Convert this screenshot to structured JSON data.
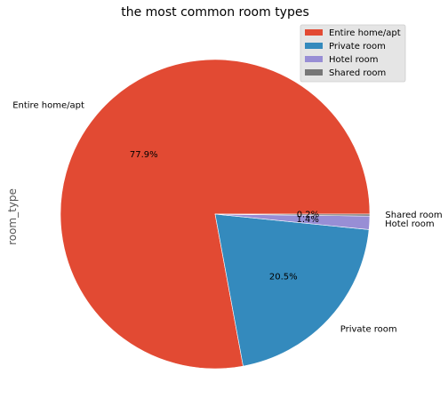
{
  "chart_data": {
    "type": "pie",
    "title": "the most common room types",
    "ylabel": "room_type",
    "categories": [
      "Entire home/apt",
      "Private room",
      "Hotel room",
      "Shared room"
    ],
    "values": [
      77.9,
      20.5,
      1.4,
      0.2
    ],
    "pct_labels": [
      "77.9%",
      "20.5%",
      "1.4%",
      "0.2%"
    ],
    "colors": [
      "#E24A33",
      "#348ABD",
      "#988ED5",
      "#777777"
    ],
    "legend": {
      "placement": "top-right",
      "entries": [
        "Entire home/apt",
        "Private room",
        "Hotel room",
        "Shared room"
      ]
    }
  }
}
